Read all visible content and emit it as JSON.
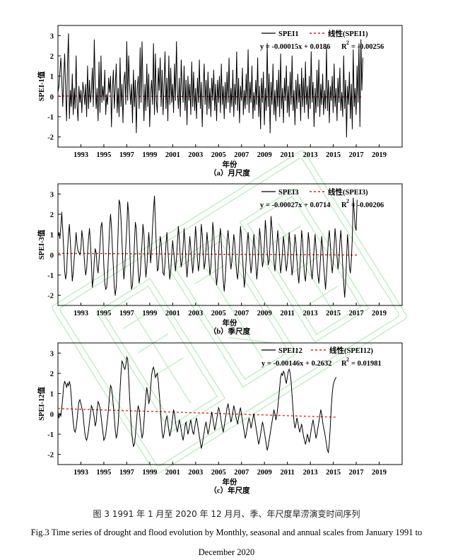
{
  "colors": {
    "series": "#000000",
    "trend": "#e41a1c",
    "watermark": "#8be08b"
  },
  "watermark_icon": "college-seal-watermark-icon",
  "chart_data": [
    {
      "type": "line",
      "panel": "a",
      "ylabel": "SPEI-1值",
      "xlabel": "年份",
      "caption": "（a）月尺度",
      "ylim": [
        -2.5,
        3.5
      ],
      "yticks": [
        -2,
        -1,
        0,
        1,
        2,
        3
      ],
      "xlim": [
        1991,
        2021
      ],
      "xticks": [
        "1993",
        "1995",
        "1997",
        "1999",
        "2001",
        "2003",
        "2005",
        "2007",
        "2009",
        "2011",
        "2013",
        "2015",
        "2017",
        "2019"
      ],
      "legend": {
        "series_label": "SPEI1",
        "trend_label": "线性(SPEI1)",
        "equation": "y = -0.00015x + 0.0186",
        "r2_label": "R",
        "r2_sup": "2",
        "r2_value": "= -0.00256"
      },
      "trend": {
        "slope_per_month": -0.00015,
        "intercept": 0.0186
      },
      "series": {
        "name": "SPEI1",
        "x_start": 1991.0,
        "x_step": 0.0833,
        "values": [
          0.2,
          0.5,
          1.2,
          1.9,
          0.8,
          -0.5,
          0.9,
          2.1,
          0.4,
          -1.2,
          1.6,
          3.1,
          -1.1,
          0.3,
          -0.5,
          1.1,
          -0.9,
          0.4,
          -0.6,
          2.0,
          -0.4,
          -1.2,
          0.5,
          -0.3,
          0.3,
          -0.8,
          0.7,
          0.3,
          -0.4,
          0.6,
          -1.0,
          1.5,
          -0.6,
          0.8,
          -0.3,
          0.2,
          1.4,
          -0.5,
          2.8,
          0.6,
          -0.6,
          0.4,
          -1.2,
          1.7,
          -0.8,
          2.0,
          -0.3,
          0.5,
          -0.2,
          1.3,
          -0.9,
          0.1,
          -0.4,
          0.9,
          0.2,
          1.0,
          -1.5,
          0.4,
          1.3,
          -0.6,
          0.5,
          1.6,
          -0.8,
          0.4,
          -1.0,
          1.9,
          -0.5,
          0.6,
          -1.3,
          0.8,
          1.2,
          -0.4,
          2.7,
          -0.2,
          2.0,
          0.5,
          -0.4,
          0.6,
          -1.3,
          1.3,
          -0.5,
          0.8,
          -1.8,
          0.4,
          1.0,
          -0.6,
          2.4,
          -0.3,
          2.7,
          0.5,
          -1.2,
          0.6,
          -0.7,
          1.6,
          -0.5,
          1.1,
          -1.5,
          0.2,
          0.8,
          -0.4,
          2.6,
          -0.9,
          2.1,
          -0.3,
          -0.8,
          1.4,
          0.3,
          1.9,
          -0.5,
          1.3,
          -0.9,
          0.5,
          2.2,
          -0.6,
          0.9,
          -1.2,
          2.0,
          -0.4,
          1.4,
          -0.3,
          0.6,
          -0.8,
          1.6,
          -0.2,
          2.7,
          0.3,
          -0.6,
          0.9,
          -1.0,
          1.8,
          0.4,
          -0.3,
          1.5,
          -0.7,
          0.8,
          -1.4,
          1.0,
          -0.2,
          0.6,
          -0.9,
          1.7,
          -0.5,
          1.2,
          -0.7,
          0.4,
          -1.1,
          0.9,
          -0.3,
          1.8,
          -0.6,
          0.7,
          -1.5,
          0.3,
          1.6,
          -0.4,
          0.8,
          -0.9,
          1.2,
          -0.6,
          0.4,
          -1.0,
          0.9,
          -0.2,
          1.3,
          -0.7,
          0.6,
          -1.2,
          0.8,
          -0.3,
          1.0,
          -0.8,
          1.6,
          -0.4,
          0.5,
          -1.1,
          0.7,
          -0.6,
          1.2,
          -0.3,
          1.9,
          -0.8,
          0.4,
          -0.5,
          1.3,
          -1.0,
          0.6,
          -0.4,
          2.2,
          -0.7,
          0.9,
          -1.3,
          0.5,
          -0.2,
          1.4,
          -0.9,
          0.3,
          -0.6,
          1.1,
          -0.4,
          2.3,
          -0.8,
          0.7,
          -0.3,
          1.5,
          -1.1,
          0.2,
          -0.7,
          0.8,
          -0.4,
          1.9,
          -1.0,
          0.5,
          -1.6,
          0.9,
          -0.3,
          1.2,
          -1.4,
          0.4,
          -0.7,
          2.6,
          -0.5,
          1.1,
          -1.8,
          0.7,
          -0.4,
          1.6,
          -0.9,
          0.3,
          -1.2,
          0.8,
          -0.5,
          1.3,
          -1.0,
          2.1,
          -0.6,
          0.4,
          -1.3,
          0.9,
          -0.2,
          1.5,
          -0.8,
          0.5,
          -1.0,
          1.2,
          -0.4,
          2.0,
          -0.7,
          0.3,
          -1.4,
          0.8,
          -0.6,
          1.1,
          -0.3,
          0.6,
          -1.2,
          1.4,
          -0.5,
          0.9,
          -0.8,
          1.7,
          -0.4,
          0.5,
          -1.1,
          1.0,
          -0.6,
          2.2,
          -0.3,
          0.7,
          -1.5,
          0.4,
          -0.8,
          1.3,
          -0.5,
          1.8,
          -1.0,
          0.6,
          -0.4,
          1.1,
          -0.9,
          0.3,
          -0.6,
          2.4,
          -0.7,
          0.8,
          -1.3,
          0.5,
          -0.2,
          1.0,
          -0.8,
          1.6,
          -0.5,
          0.4,
          -1.2,
          0.9,
          -0.3,
          1.4,
          -0.7,
          0.2,
          -1.0,
          2.0,
          -0.6,
          0.8,
          -2.0,
          0.5,
          -0.4,
          1.2,
          -1.1,
          0.6,
          -1.6,
          2.3,
          -0.5,
          0.4,
          -0.9,
          1.5,
          -0.3,
          2.6,
          -1.5,
          2.8,
          0.3,
          1.9
        ]
      }
    },
    {
      "type": "line",
      "panel": "b",
      "ylabel": "SPEI-3值",
      "xlabel": "年份",
      "caption": "（b）季尺度",
      "ylim": [
        -2.5,
        3.5
      ],
      "yticks": [
        -2,
        -1,
        0,
        1,
        2,
        3
      ],
      "xlim": [
        1991,
        2021
      ],
      "xticks": [
        "1993",
        "1995",
        "1997",
        "1999",
        "2001",
        "2003",
        "2005",
        "2007",
        "2009",
        "2011",
        "2013",
        "2015",
        "2017",
        "2019"
      ],
      "legend": {
        "series_label": "SPEI3",
        "trend_label": "线性(SPEI3)",
        "equation": "y = -0.00027x + 0.0714",
        "r2_label": "R",
        "r2_sup": "2",
        "r2_value": "= -0.00206"
      },
      "trend": {
        "slope_per_month": -0.00027,
        "intercept": 0.0714
      },
      "series": {
        "name": "SPEI3",
        "x_start": 1991.0,
        "x_step": 0.0833,
        "values": [
          0.9,
          1.1,
          0.8,
          1.4,
          2.1,
          1.2,
          0.3,
          -0.8,
          -1.2,
          -0.9,
          0.2,
          1.0,
          1.5,
          0.6,
          -0.3,
          -1.3,
          -0.9,
          -0.2,
          0.4,
          1.1,
          0.5,
          0.2,
          0.1,
          0.0,
          0.3,
          1.2,
          0.8,
          0.2,
          -0.5,
          -1.0,
          -0.7,
          0.1,
          0.8,
          1.3,
          0.6,
          -0.4,
          -1.6,
          -1.2,
          -0.3,
          0.3,
          0.1,
          -0.6,
          -0.9,
          -0.3,
          0.5,
          1.4,
          1.6,
          0.8,
          -0.5,
          -1.4,
          -1.7,
          -1.6,
          -1.0,
          0.2,
          1.3,
          2.0,
          1.4,
          0.3,
          -0.6,
          -1.6,
          -2.0,
          -1.6,
          -0.3,
          1.2,
          2.7,
          2.5,
          1.8,
          0.6,
          -0.5,
          -1.2,
          -0.6,
          0.4,
          1.3,
          2.6,
          2.0,
          0.7,
          -0.9,
          -1.7,
          -1.5,
          -0.6,
          0.5,
          1.6,
          1.3,
          0.2,
          -0.8,
          -1.4,
          -1.0,
          -0.2,
          0.6,
          1.5,
          1.0,
          -0.3,
          -1.1,
          -0.6,
          0.2,
          1.1,
          0.4,
          -0.4,
          0.3,
          1.4,
          2.2,
          2.9,
          1.6,
          0.4,
          -0.8,
          -0.7,
          0.1,
          0.9,
          0.6,
          -0.2,
          -0.9,
          -1.0,
          -0.4,
          0.5,
          1.1,
          0.3,
          -0.5,
          -1.2,
          -0.8,
          0.0,
          0.7,
          0.2,
          -0.3,
          -0.8,
          -0.2,
          0.6,
          1.4,
          0.8,
          -0.1,
          -0.6,
          -0.3,
          0.4,
          1.3,
          0.6,
          -0.4,
          -1.1,
          -0.5,
          0.2,
          0.9,
          0.3,
          -0.3,
          -0.9,
          -0.4,
          0.5,
          1.4,
          0.7,
          -0.2,
          -0.8,
          -0.4,
          0.4,
          1.5,
          1.0,
          0.1,
          -0.7,
          -0.4,
          0.3,
          1.1,
          0.5,
          -0.3,
          -1.0,
          -0.6,
          0.3,
          1.6,
          1.1,
          0.2,
          -0.9,
          -1.5,
          -1.0,
          -0.1,
          0.8,
          1.3,
          0.6,
          -0.5,
          -1.3,
          -1.8,
          -1.2,
          -0.3,
          0.7,
          1.2,
          0.6,
          -0.2,
          -0.7,
          -0.3,
          0.3,
          1.0,
          0.6,
          -0.2,
          -0.9,
          -1.2,
          -0.6,
          0.4,
          1.4,
          0.9,
          0.0,
          -0.8,
          -1.6,
          -1.1,
          -0.2,
          0.6,
          1.1,
          0.4,
          -0.3,
          -0.9,
          -0.5,
          0.3,
          1.0,
          0.4,
          -0.4,
          -1.2,
          -0.7,
          0.2,
          1.3,
          0.8,
          0.0,
          -0.6,
          -0.3,
          0.5,
          1.7,
          1.1,
          0.2,
          -0.5,
          -0.3,
          0.6,
          1.9,
          1.3,
          0.5,
          -0.3,
          -0.8,
          -0.3,
          0.5,
          1.2,
          0.6,
          -0.2,
          -0.9,
          -0.5,
          0.2,
          0.9,
          0.4,
          -0.3,
          -0.8,
          -0.4,
          0.3,
          1.1,
          0.5,
          -0.4,
          -1.0,
          -0.6,
          0.2,
          1.0,
          0.6,
          -0.2,
          -0.9,
          -1.4,
          -0.8,
          0.1,
          1.2,
          0.7,
          -0.3,
          -1.0,
          -1.3,
          -0.7,
          0.2,
          1.1,
          0.6,
          -0.2,
          -0.8,
          -1.2,
          -0.6,
          0.3,
          1.0,
          0.4,
          -0.4,
          -1.0,
          -1.4,
          -0.8,
          0.1,
          0.9,
          0.3,
          -0.5,
          -1.1,
          -1.7,
          -1.0,
          -0.1,
          0.8,
          1.2,
          0.5,
          -0.3,
          -0.9,
          -0.4,
          0.4,
          1.3,
          0.7,
          -0.1,
          -0.7,
          -0.3,
          0.6,
          1.2,
          0.4,
          -0.6,
          -1.4,
          -2.1,
          -1.4,
          -0.2,
          1.0,
          0.4,
          -0.6,
          -0.9,
          -0.3,
          0.8,
          2.8,
          2.1,
          1.4,
          1.2,
          2.7
        ]
      }
    },
    {
      "type": "line",
      "panel": "c",
      "ylabel": "SPEI-12值",
      "xlabel": "年份",
      "caption": "（c）年尺度",
      "ylim": [
        -2.5,
        3.5
      ],
      "yticks": [
        -2,
        -1,
        0,
        1,
        2,
        3
      ],
      "xlim": [
        1991,
        2021
      ],
      "xticks": [
        "1993",
        "1995",
        "1997",
        "1999",
        "2001",
        "2003",
        "2005",
        "2007",
        "2009",
        "2011",
        "2013",
        "2015",
        "2017",
        "2019"
      ],
      "legend": {
        "series_label": "SPEI12",
        "trend_label": "线性(SPEI12)",
        "equation": "y = -0.00146x + 0.2632",
        "r2_label": "R",
        "r2_sup": "2",
        "r2_value": "= 0.01981"
      },
      "trend": {
        "slope_per_month": -0.00146,
        "intercept": 0.2632
      },
      "series": {
        "name": "SPEI12",
        "x_start": 1991.0,
        "x_step": 0.0833,
        "values": [
          0.1,
          -0.2,
          0.0,
          -0.1,
          0.3,
          0.8,
          1.4,
          1.6,
          1.5,
          1.3,
          1.5,
          1.4,
          1.6,
          1.4,
          0.8,
          0.1,
          -0.4,
          -0.8,
          -0.9,
          -0.7,
          -0.3,
          0.2,
          0.6,
          0.7,
          0.5,
          0.3,
          0.1,
          -0.4,
          -0.9,
          -1.2,
          -1.3,
          -1.1,
          -0.8,
          -0.4,
          0.0,
          0.4,
          0.3,
          0.1,
          -0.2,
          -0.6,
          -0.4,
          0.2,
          0.6,
          0.5,
          0.3,
          -0.1,
          -0.5,
          -0.9,
          -1.3,
          -1.2,
          -1.0,
          -0.6,
          -0.2,
          0.3,
          0.9,
          1.4,
          1.3,
          0.9,
          0.4,
          -0.2,
          -0.8,
          -1.2,
          -1.0,
          -0.5,
          0.3,
          1.2,
          2.0,
          2.6,
          2.5,
          2.3,
          2.2,
          2.4,
          2.8,
          2.7,
          1.8,
          0.8,
          -0.1,
          -0.8,
          -1.3,
          -1.6,
          -1.5,
          -1.1,
          -0.5,
          0.1,
          0.4,
          0.2,
          -0.3,
          -0.8,
          -1.2,
          -1.0,
          -0.4,
          0.3,
          0.9,
          1.3,
          1.0,
          0.5,
          0.7,
          1.3,
          1.9,
          2.2,
          2.3,
          2.1,
          1.8,
          1.9,
          2.0,
          1.6,
          1.0,
          0.4,
          -0.3,
          -0.9,
          -1.2,
          -1.0,
          -0.6,
          -0.3,
          -0.1,
          -0.4,
          -0.8,
          -1.1,
          -0.9,
          -0.6,
          -0.2,
          0.2,
          0.0,
          -0.4,
          -0.7,
          -0.9,
          -0.6,
          -0.3,
          -0.5,
          -0.8,
          -1.1,
          -1.3,
          -1.0,
          -0.6,
          -0.4,
          -0.7,
          -1.0,
          -0.8,
          -0.5,
          -0.3,
          -0.6,
          -0.9,
          -1.0,
          -0.7,
          -0.4,
          -0.2,
          -0.5,
          -0.8,
          -1.1,
          -1.4,
          -1.7,
          -1.5,
          -1.2,
          -0.9,
          -0.6,
          -0.4,
          -0.7,
          -1.0,
          -0.8,
          -0.5,
          -0.2,
          0.1,
          -0.2,
          -0.5,
          -0.8,
          -0.6,
          -0.3,
          0.0,
          0.3,
          0.2,
          -0.1,
          -0.4,
          -0.7,
          -0.9,
          -0.6,
          -0.3,
          0.0,
          0.3,
          0.5,
          0.2,
          -0.1,
          -0.4,
          -0.2,
          0.1,
          0.4,
          0.2,
          -0.1,
          -0.3,
          -0.5,
          -0.2,
          0.1,
          0.3,
          0.0,
          -0.3,
          -0.6,
          -0.9,
          -1.2,
          -1.0,
          -0.7,
          -0.4,
          -0.2,
          -0.4,
          -0.7,
          -0.5,
          -0.2,
          0.0,
          -0.3,
          -0.6,
          -0.9,
          -1.2,
          -1.5,
          -1.3,
          -1.0,
          -0.7,
          -0.4,
          -0.6,
          -0.9,
          -1.2,
          -1.5,
          -1.8,
          -1.6,
          -1.3,
          -1.0,
          -0.7,
          -0.4,
          -0.1,
          0.2,
          0.0,
          -0.3,
          -0.1,
          0.3,
          0.8,
          1.3,
          1.8,
          2.0,
          1.9,
          2.1,
          2.0,
          1.7,
          1.5,
          1.8,
          2.1,
          2.2,
          2.0,
          1.6,
          0.9,
          0.2,
          -0.4,
          -0.7,
          -0.5,
          -0.2,
          -0.4,
          -0.7,
          -0.9,
          -0.7,
          -0.5,
          -0.8,
          -1.1,
          -1.3,
          -1.5,
          -1.3,
          -1.0,
          -1.2,
          -1.4,
          -1.1,
          -0.8,
          -0.5,
          -0.3,
          -0.6,
          -0.9,
          -1.2,
          -1.0,
          -0.7,
          -0.4,
          -0.1,
          0.2,
          0.0,
          -0.4,
          -0.7,
          -0.9,
          -1.2,
          -1.5,
          -1.8,
          -1.9,
          -1.4,
          -0.6,
          0.3,
          1.0,
          1.4,
          1.6,
          1.7,
          1.8
        ]
      }
    }
  ],
  "caption": {
    "zh": "图 3 1991 年 1 月至 2020 年 12 月月、季、年尺度旱涝演变时间序列",
    "en_line1": "Fig.3 Time series of drought and flood evolution by Monthly, seasonal and annual scales from January 1991 to",
    "en_line2": "December 2020"
  }
}
